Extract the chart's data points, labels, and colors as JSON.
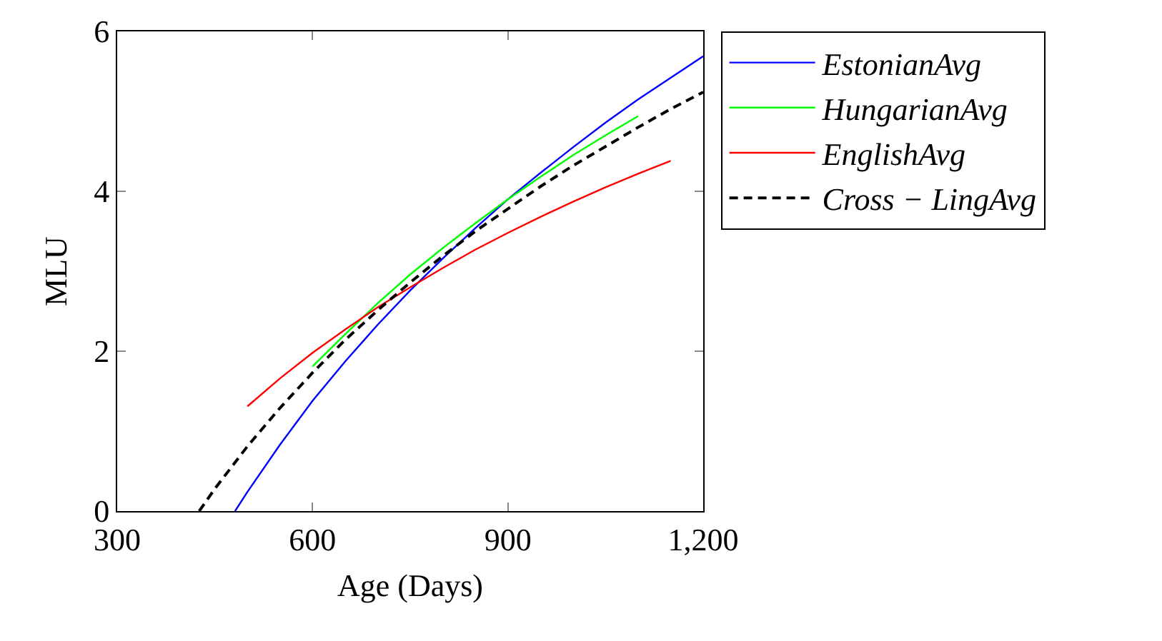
{
  "chart_data": {
    "type": "line",
    "xlabel": "Age (Days)",
    "ylabel": "MLU",
    "xlim": [
      300,
      1200
    ],
    "xticks": [
      300,
      600,
      900,
      {
        "value": 1200,
        "label": "1,200"
      }
    ],
    "ylim": [
      0,
      6
    ],
    "yticks": [
      0,
      2,
      4,
      6
    ],
    "grid": false,
    "legend": "top right",
    "marker": "none",
    "series": [
      {
        "name": "EstonianAvg",
        "color": "#0000ff",
        "line_style": "solid",
        "x": [
          481,
          500,
          550,
          600,
          650,
          700,
          750,
          800,
          850,
          900,
          950,
          1000,
          1050,
          1100,
          1150,
          1200
        ],
        "values": [
          0,
          0.24,
          0.83,
          1.38,
          1.87,
          2.33,
          2.76,
          3.16,
          3.54,
          3.9,
          4.23,
          4.55,
          4.86,
          5.15,
          5.42,
          5.69
        ]
      },
      {
        "name": "HungarianAvg",
        "color": "#00ff00",
        "line_style": "solid",
        "x": [
          600,
          650,
          700,
          750,
          800,
          850,
          900,
          950,
          1000,
          1050,
          1100
        ],
        "values": [
          1.81,
          2.21,
          2.6,
          2.96,
          3.29,
          3.6,
          3.9,
          4.18,
          4.45,
          4.7,
          4.94
        ]
      },
      {
        "name": "EnglishAvg",
        "color": "#ff0000",
        "line_style": "solid",
        "x": [
          500,
          550,
          600,
          650,
          700,
          750,
          800,
          850,
          900,
          950,
          1000,
          1050,
          1100,
          1150
        ],
        "values": [
          1.31,
          1.66,
          1.98,
          2.27,
          2.55,
          2.8,
          3.04,
          3.27,
          3.48,
          3.68,
          3.87,
          4.05,
          4.22,
          4.38
        ]
      },
      {
        "name": "Cross − LingAvg",
        "color": "#000000",
        "line_style": "dashed",
        "x": [
          426,
          450,
          500,
          550,
          600,
          650,
          700,
          750,
          800,
          850,
          900,
          950,
          1000,
          1050,
          1100,
          1150,
          1200
        ],
        "values": [
          0,
          0.28,
          0.81,
          1.29,
          1.73,
          2.14,
          2.51,
          2.86,
          3.19,
          3.5,
          3.78,
          4.06,
          4.32,
          4.56,
          4.8,
          5.03,
          5.24
        ]
      }
    ]
  }
}
